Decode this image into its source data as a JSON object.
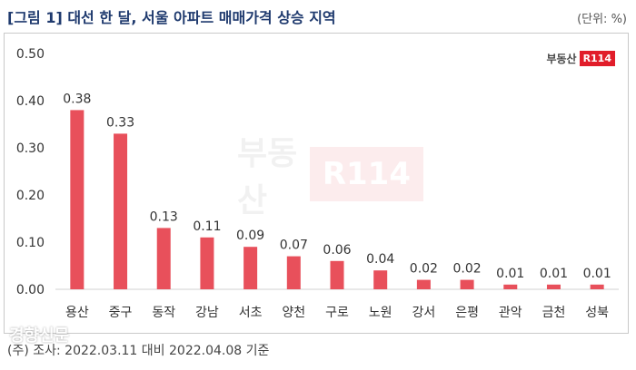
{
  "header": {
    "title": "[그림 1]  대선 한 달, 서울 아파트 매매가격 상승 지역",
    "unit": "(단위: %)"
  },
  "logo": {
    "text": "부동산",
    "box": "R114"
  },
  "watermark": {
    "text": "부동산",
    "box": "R114"
  },
  "footer": {
    "note": "(주) 조사: 2022.03.11 대비 2022.04.08 기준",
    "press": "경향신문"
  },
  "colors": {
    "bar": "#e8505b",
    "axis": "#d0d0d0",
    "text": "#333333",
    "title": "#1f3a6e"
  },
  "chart_data": {
    "type": "bar",
    "title": "[그림 1]  대선 한 달, 서울 아파트 매매가격 상승 지역",
    "categories": [
      "용산",
      "중구",
      "동작",
      "강남",
      "서초",
      "양천",
      "구로",
      "노원",
      "강서",
      "은평",
      "관악",
      "금천",
      "성북"
    ],
    "values": [
      0.38,
      0.33,
      0.13,
      0.11,
      0.09,
      0.07,
      0.06,
      0.04,
      0.02,
      0.02,
      0.01,
      0.01,
      0.01
    ],
    "value_labels": [
      "0.38",
      "0.33",
      "0.13",
      "0.11",
      "0.09",
      "0.07",
      "0.06",
      "0.04",
      "0.02",
      "0.02",
      "0.01",
      "0.01",
      "0.01"
    ],
    "yticks": [
      "0.00",
      "0.10",
      "0.20",
      "0.30",
      "0.40",
      "0.50"
    ],
    "ylim": [
      0,
      0.5
    ],
    "xlabel": "",
    "ylabel": "",
    "grid": false,
    "legend": "none"
  }
}
